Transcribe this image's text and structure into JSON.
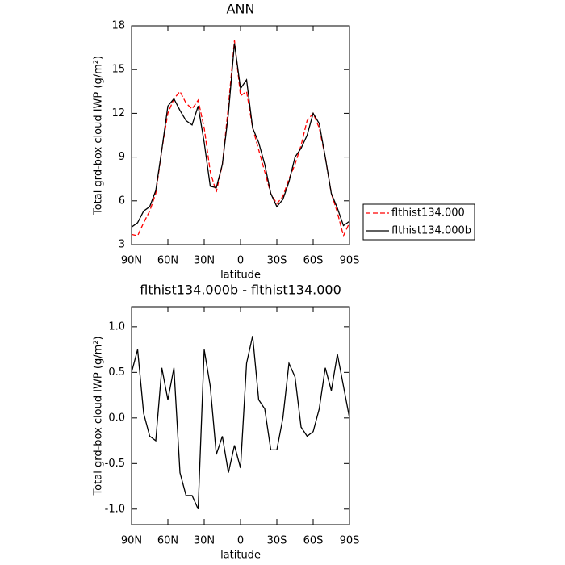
{
  "chart_data": [
    {
      "type": "line",
      "title": "ANN",
      "ylabel": "Total grd-box cloud IWP (g/m²)",
      "xlabel": "latitude",
      "x": [
        90,
        85,
        80,
        75,
        70,
        65,
        60,
        55,
        50,
        45,
        40,
        35,
        30,
        25,
        20,
        15,
        10,
        5,
        0,
        -5,
        -10,
        -15,
        -20,
        -25,
        -30,
        -35,
        -40,
        -45,
        -50,
        -55,
        -60,
        -65,
        -70,
        -75,
        -80,
        -85,
        -90
      ],
      "series": [
        {
          "name": "flthist134.000",
          "color": "#ff0000",
          "line_style": "dashed",
          "values": [
            3.7,
            3.6,
            4.5,
            5.3,
            6.5,
            9.5,
            12.0,
            13.0,
            13.5,
            12.7,
            12.3,
            12.9,
            11.0,
            8.0,
            6.6,
            8.5,
            12.5,
            17.0,
            13.2,
            13.5,
            11.0,
            9.5,
            8.0,
            6.5,
            5.8,
            6.3,
            7.5,
            8.5,
            9.8,
            11.5,
            12.0,
            11.0,
            9.0,
            6.5,
            5.2,
            3.6,
            4.5
          ]
        },
        {
          "name": "flthist134.000b",
          "color": "#000000",
          "line_style": "solid",
          "values": [
            4.2,
            4.5,
            5.3,
            5.6,
            6.7,
            9.5,
            12.5,
            13.0,
            12.2,
            11.5,
            11.2,
            12.5,
            10.0,
            7.0,
            6.9,
            8.5,
            12.0,
            16.8,
            13.7,
            14.3,
            11.0,
            10.0,
            8.5,
            6.5,
            5.6,
            6.1,
            7.3,
            9.0,
            9.6,
            10.5,
            12.0,
            11.3,
            9.0,
            6.5,
            5.5,
            4.3,
            4.6
          ]
        }
      ],
      "xlim": [
        90,
        -90
      ],
      "xticks": [
        {
          "value": 90,
          "label": "90N"
        },
        {
          "value": 60,
          "label": "60N"
        },
        {
          "value": 30,
          "label": "30N"
        },
        0,
        {
          "value": -30,
          "label": "30S"
        },
        {
          "value": -60,
          "label": "60S"
        },
        {
          "value": -90,
          "label": "90S"
        }
      ],
      "ylim": [
        3,
        18
      ],
      "yticks": [
        3,
        6,
        9,
        12,
        15,
        18
      ],
      "legend": "right"
    },
    {
      "type": "line",
      "title": "flthist134.000b - flthist134.000",
      "ylabel": "Total grd-box cloud IWP (g/m²)",
      "xlabel": "latitude",
      "x": [
        90,
        85,
        80,
        75,
        70,
        65,
        60,
        55,
        50,
        45,
        40,
        35,
        30,
        25,
        20,
        15,
        10,
        5,
        0,
        -5,
        -10,
        -15,
        -20,
        -25,
        -30,
        -35,
        -40,
        -45,
        -50,
        -55,
        -60,
        -65,
        -70,
        -75,
        -80,
        -85,
        -90
      ],
      "color": "#000000",
      "values": [
        0.5,
        0.75,
        0.05,
        -0.2,
        -0.25,
        0.55,
        0.2,
        0.55,
        -0.6,
        -0.85,
        -0.85,
        -1.0,
        0.75,
        0.35,
        -0.4,
        -0.2,
        -0.6,
        -0.3,
        -0.55,
        0.6,
        0.9,
        0.2,
        0.1,
        -0.35,
        -0.35,
        0.0,
        0.6,
        0.45,
        -0.1,
        -0.2,
        -0.15,
        0.1,
        0.55,
        0.3,
        0.7,
        0.35,
        0.0
      ],
      "xlim": [
        90,
        -90
      ],
      "xticks": [
        {
          "value": 90,
          "label": "90N"
        },
        {
          "value": 60,
          "label": "60N"
        },
        {
          "value": 30,
          "label": "30N"
        },
        0,
        {
          "value": -30,
          "label": "30S"
        },
        {
          "value": -60,
          "label": "60S"
        },
        {
          "value": -90,
          "label": "90S"
        }
      ],
      "ylim": [
        -1.17,
        1.22
      ],
      "yticks": [
        {
          "value": -1.0,
          "label": "-1.0"
        },
        -0.5,
        {
          "value": 0.0,
          "label": "0.0"
        },
        0.5,
        {
          "value": 1.0,
          "label": "1.0"
        }
      ]
    }
  ]
}
